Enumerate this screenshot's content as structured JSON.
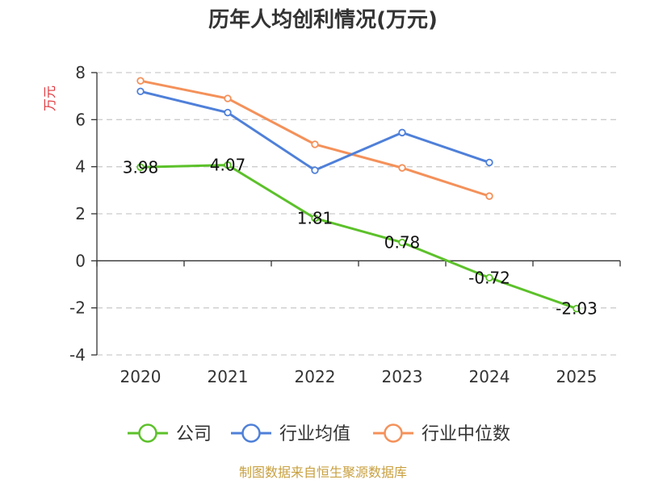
{
  "chart_data": {
    "type": "line",
    "title": "历年人均创利情况(万元)",
    "ylabel": "万元",
    "xlabel": "",
    "categories": [
      "2020",
      "2021",
      "2022",
      "2023",
      "2024",
      "2025"
    ],
    "ylim": [
      -4,
      8
    ],
    "yticks": [
      8,
      6,
      4,
      2,
      0,
      -2,
      -4
    ],
    "grid": true,
    "series": [
      {
        "name": "公司",
        "color": "#5cc12a",
        "values": [
          3.98,
          4.07,
          1.81,
          0.78,
          -0.72,
          -2.03
        ],
        "labels": [
          "3.98",
          "4.07",
          "1.81",
          "0.78",
          "-0.72",
          "-2.03"
        ]
      },
      {
        "name": "行业均值",
        "color": "#4f80d9",
        "values": [
          7.2,
          6.3,
          3.85,
          5.45,
          4.18,
          null
        ]
      },
      {
        "name": "行业中位数",
        "color": "#f4915a",
        "values": [
          7.65,
          6.9,
          4.95,
          3.95,
          2.75,
          null
        ]
      }
    ],
    "legend": "bottom-center",
    "source": "制图数据来自恒生聚源数据库"
  }
}
